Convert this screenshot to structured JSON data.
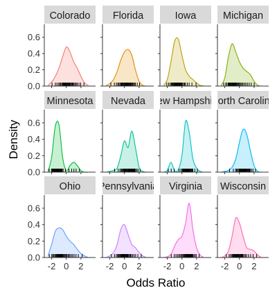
{
  "chart_data": {
    "type": "area",
    "subtype": "faceted-density",
    "xlabel": "Odds Ratio",
    "ylabel": "Density",
    "x_ticks": [
      "-2",
      "0",
      "2"
    ],
    "y_ticks": [
      "0.0",
      "0.2",
      "0.4",
      "0.6"
    ],
    "xlim": [
      -3,
      4
    ],
    "ylim": [
      0,
      0.76
    ],
    "grid": false,
    "legend": "none",
    "layout": {
      "columns": 4,
      "rows": 3
    },
    "x": [
      -2.5,
      -2,
      -1.5,
      -1,
      -0.5,
      0,
      0.5,
      1,
      1.5,
      2,
      2.5,
      3
    ],
    "facets": [
      {
        "name": "Colorado",
        "label": "Colorado",
        "color": "#F8766D",
        "values": [
          0.01,
          0.05,
          0.12,
          0.22,
          0.36,
          0.48,
          0.42,
          0.3,
          0.22,
          0.12,
          0.04,
          0.01
        ]
      },
      {
        "name": "Florida",
        "label": "Florida",
        "color": "#DE8C00",
        "values": [
          0.01,
          0.03,
          0.08,
          0.18,
          0.32,
          0.42,
          0.45,
          0.38,
          0.2,
          0.06,
          0.01,
          0.0
        ]
      },
      {
        "name": "Iowa",
        "label": "Iowa",
        "color": "#B79F00",
        "values": [
          0.01,
          0.08,
          0.3,
          0.55,
          0.58,
          0.38,
          0.2,
          0.12,
          0.08,
          0.04,
          0.01,
          0.0
        ]
      },
      {
        "name": "Michigan",
        "label": "Michigan",
        "color": "#7CAE00",
        "values": [
          0.01,
          0.1,
          0.36,
          0.52,
          0.42,
          0.3,
          0.22,
          0.18,
          0.14,
          0.06,
          0.01,
          0.0
        ]
      },
      {
        "name": "Minnesota",
        "label": "Minnesota",
        "color": "#00BA38",
        "values": [
          0.01,
          0.18,
          0.56,
          0.58,
          0.18,
          0.02,
          0.08,
          0.12,
          0.08,
          0.02,
          0.0,
          0.0
        ]
      },
      {
        "name": "Nevada",
        "label": "Nevada",
        "color": "#00C08B",
        "values": [
          0.0,
          0.01,
          0.02,
          0.05,
          0.2,
          0.38,
          0.3,
          0.5,
          0.3,
          0.06,
          0.01,
          0.0
        ]
      },
      {
        "name": "New Hampshire",
        "label": "New Hampshire",
        "color": "#00BFC4",
        "values": [
          0.0,
          0.02,
          0.12,
          0.02,
          0.03,
          0.2,
          0.62,
          0.48,
          0.16,
          0.05,
          0.01,
          0.0
        ]
      },
      {
        "name": "North Carolina",
        "label": "North Carolina",
        "color": "#00B4F0",
        "values": [
          0.0,
          0.01,
          0.02,
          0.06,
          0.16,
          0.36,
          0.52,
          0.46,
          0.26,
          0.08,
          0.01,
          0.0
        ]
      },
      {
        "name": "Ohio",
        "label": "Ohio",
        "color": "#619CFF",
        "values": [
          0.02,
          0.16,
          0.32,
          0.36,
          0.34,
          0.26,
          0.2,
          0.16,
          0.1,
          0.05,
          0.02,
          0.0
        ]
      },
      {
        "name": "Pennsylvania",
        "label": "Pennsylvania",
        "color": "#C77CFF",
        "values": [
          0.0,
          0.02,
          0.06,
          0.16,
          0.34,
          0.4,
          0.28,
          0.16,
          0.12,
          0.06,
          0.02,
          0.0
        ]
      },
      {
        "name": "Virginia",
        "label": "Virginia",
        "color": "#F564E3",
        "values": [
          0.0,
          0.01,
          0.04,
          0.14,
          0.22,
          0.26,
          0.42,
          0.66,
          0.34,
          0.12,
          0.03,
          0.0
        ]
      },
      {
        "name": "Wisconsin",
        "label": "Wisconsin",
        "color": "#FF64B0",
        "values": [
          0.0,
          0.02,
          0.08,
          0.26,
          0.48,
          0.42,
          0.26,
          0.12,
          0.1,
          0.08,
          0.03,
          0.0
        ]
      }
    ]
  }
}
